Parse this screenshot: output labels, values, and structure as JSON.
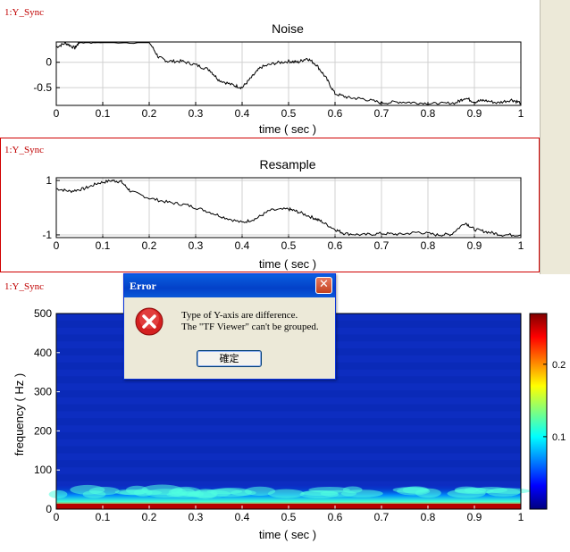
{
  "panels": [
    {
      "tag": "1:Y_Sync",
      "selected": false
    },
    {
      "tag": "1:Y_Sync",
      "selected": true
    },
    {
      "tag": "1:Y_Sync",
      "selected": false
    }
  ],
  "dialog": {
    "title": "Error",
    "message_line1": "Type of Y-axis are difference.",
    "message_line2": "The \"TF Viewer\" can't be grouped.",
    "ok_label": "確定",
    "close_glyph": "✕",
    "icon": "error-icon"
  },
  "colors": {
    "panel_tag": "#c00000",
    "selection_border": "#d00000",
    "dialog_title": "#0a5fe0"
  },
  "chart_data": [
    {
      "type": "line",
      "title": "Noise",
      "xlabel": "time ( sec )",
      "ylabel": "",
      "xlim": [
        0,
        1
      ],
      "ylim": [
        -0.85,
        0.4
      ],
      "xticks": [
        "0",
        "0.1",
        "0.2",
        "0.3",
        "0.4",
        "0.5",
        "0.6",
        "0.7",
        "0.8",
        "0.9",
        "1"
      ],
      "yticks": [
        "0",
        "-0.5"
      ],
      "ytick_values": [
        0,
        -0.5
      ],
      "grid": true,
      "series": [
        {
          "x": [
            0,
            0.02,
            0.04,
            0.05,
            0.1,
            0.2,
            0.22,
            0.24,
            0.27,
            0.3,
            0.33,
            0.35,
            0.38,
            0.4,
            0.42,
            0.44,
            0.47,
            0.5,
            0.52,
            0.54,
            0.56,
            0.58,
            0.6,
            0.63,
            0.66,
            0.7,
            0.74,
            0.78,
            0.82,
            0.86,
            0.88,
            0.9,
            0.92,
            0.95,
            0.98,
            1
          ],
          "y": [
            0.3,
            0.38,
            0.28,
            0.4,
            0.4,
            0.4,
            0.1,
            0.02,
            0.02,
            -0.05,
            -0.15,
            -0.35,
            -0.45,
            -0.5,
            -0.3,
            -0.1,
            -0.02,
            0.02,
            0.0,
            0.08,
            -0.05,
            -0.3,
            -0.62,
            -0.7,
            -0.72,
            -0.8,
            -0.78,
            -0.8,
            -0.82,
            -0.8,
            -0.7,
            -0.78,
            -0.75,
            -0.8,
            -0.74,
            -0.8
          ]
        }
      ]
    },
    {
      "type": "line",
      "title": "Resample",
      "xlabel": "time ( sec )",
      "ylabel": "",
      "xlim": [
        0,
        1
      ],
      "ylim": [
        -1.1,
        1.1
      ],
      "xticks": [
        "0",
        "0.1",
        "0.2",
        "0.3",
        "0.4",
        "0.5",
        "0.6",
        "0.7",
        "0.8",
        "0.9",
        "1"
      ],
      "yticks": [
        "1",
        "-1"
      ],
      "ytick_values": [
        1,
        -1
      ],
      "grid": true,
      "series": [
        {
          "x": [
            0,
            0.03,
            0.06,
            0.09,
            0.12,
            0.14,
            0.16,
            0.2,
            0.24,
            0.28,
            0.32,
            0.36,
            0.4,
            0.43,
            0.46,
            0.5,
            0.52,
            0.55,
            0.57,
            0.6,
            0.62,
            0.66,
            0.7,
            0.74,
            0.78,
            0.82,
            0.85,
            0.88,
            0.9,
            0.93,
            0.96,
            1
          ],
          "y": [
            0.7,
            0.6,
            0.7,
            0.9,
            1.0,
            0.95,
            0.6,
            0.35,
            0.2,
            0.1,
            -0.1,
            -0.35,
            -0.55,
            -0.4,
            -0.1,
            -0.05,
            -0.15,
            -0.35,
            -0.5,
            -0.8,
            -0.95,
            -1.0,
            -0.95,
            -0.98,
            -0.9,
            -1.0,
            -0.98,
            -0.55,
            -0.8,
            -0.9,
            -1.0,
            -1.0
          ]
        }
      ]
    },
    {
      "type": "heatmap",
      "title": "",
      "xlabel": "time ( sec )",
      "ylabel": "frequency ( Hz )",
      "xlim": [
        0,
        1
      ],
      "ylim": [
        0,
        500
      ],
      "xticks": [
        "0",
        "0.1",
        "0.2",
        "0.3",
        "0.4",
        "0.5",
        "0.6",
        "0.7",
        "0.8",
        "0.9",
        "1"
      ],
      "yticks": [
        "500",
        "400",
        "300",
        "200",
        "100",
        "0"
      ],
      "ytick_values": [
        500,
        400,
        300,
        200,
        100,
        0
      ],
      "colorbar_ticks": [
        "0.2",
        "0.1"
      ],
      "colorbar_values": [
        0.2,
        0.1
      ],
      "colorbar_range": [
        0,
        0.27
      ]
    }
  ]
}
